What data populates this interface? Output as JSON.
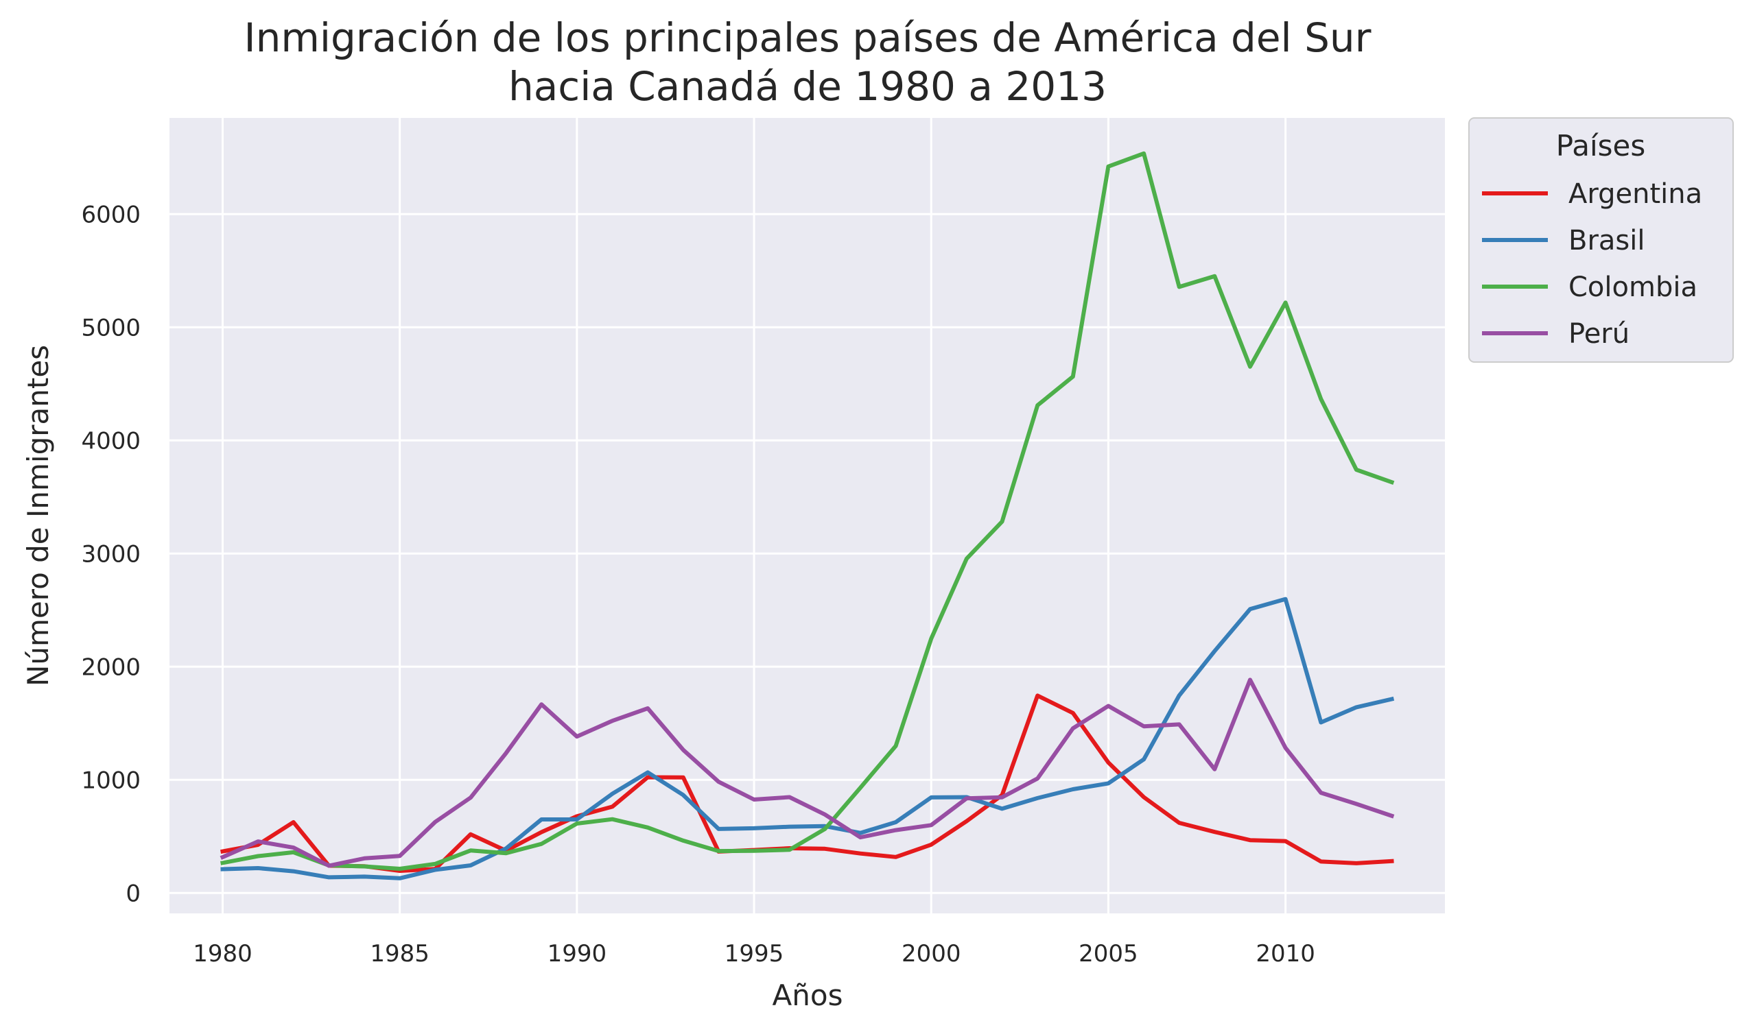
{
  "chart_data": {
    "type": "line",
    "title_lines": [
      "Inmigración de los principales países de América del Sur",
      "hacia Canadá de 1980 a 2013"
    ],
    "xlabel": "Años",
    "ylabel": "Número de Inmigrantes",
    "xlim": [
      1978.5,
      2014.5
    ],
    "ylim": [
      -180,
      6850
    ],
    "x_ticks": [
      1980,
      1985,
      1990,
      1995,
      2000,
      2005,
      2010
    ],
    "y_ticks": [
      0,
      1000,
      2000,
      3000,
      4000,
      5000,
      6000
    ],
    "grid": true,
    "legend": {
      "title": "Países",
      "placement": "outside right, top"
    },
    "x": [
      1980,
      1981,
      1982,
      1983,
      1984,
      1985,
      1986,
      1987,
      1988,
      1989,
      1990,
      1991,
      1992,
      1993,
      1994,
      1995,
      1996,
      1997,
      1998,
      1999,
      2000,
      2001,
      2002,
      2003,
      2004,
      2005,
      2006,
      2007,
      2008,
      2009,
      2010,
      2011,
      2012,
      2013
    ],
    "series": [
      {
        "name": "Argentina",
        "color": "#e41a1c",
        "values": [
          368,
          426,
          626,
          241,
          237,
          196,
          213,
          519,
          374,
          538,
          678,
          763,
          1023,
          1022,
          366,
          380,
          396,
          391,
          349,
          318,
          427,
          635,
          865,
          1745,
          1591,
          1153,
          847,
          620,
          540,
          467,
          459,
          278,
          263,
          282
        ]
      },
      {
        "name": "Brasil",
        "color": "#377eb8",
        "values": [
          211,
          220,
          192,
          139,
          145,
          130,
          205,
          244,
          394,
          650,
          650,
          877,
          1066,
          866,
          566,
          572,
          586,
          591,
          531,
          626,
          845,
          847,
          745,
          839,
          917,
          969,
          1181,
          1746,
          2138,
          2509,
          2598,
          1508,
          1642,
          1714
        ]
      },
      {
        "name": "Colombia",
        "color": "#4daf4a",
        "values": [
          266,
          326,
          360,
          244,
          235,
          214,
          257,
          376,
          352,
          434,
          614,
          652,
          579,
          463,
          371,
          373,
          382,
          566,
          930,
          1300,
          2247,
          2955,
          3282,
          4310,
          4564,
          6421,
          6536,
          5357,
          5452,
          4652,
          5218,
          4366,
          3741,
          3631
        ]
      },
      {
        "name": "Perú",
        "color": "#984ea3",
        "values": [
          317,
          456,
          401,
          241,
          306,
          328,
          628,
          843,
          1237,
          1667,
          1383,
          1522,
          1632,
          1265,
          983,
          826,
          847,
          694,
          492,
          556,
          600,
          837,
          846,
          1012,
          1455,
          1653,
          1473,
          1490,
          1094,
          1884,
          1283,
          886,
          787,
          682
        ]
      }
    ]
  }
}
